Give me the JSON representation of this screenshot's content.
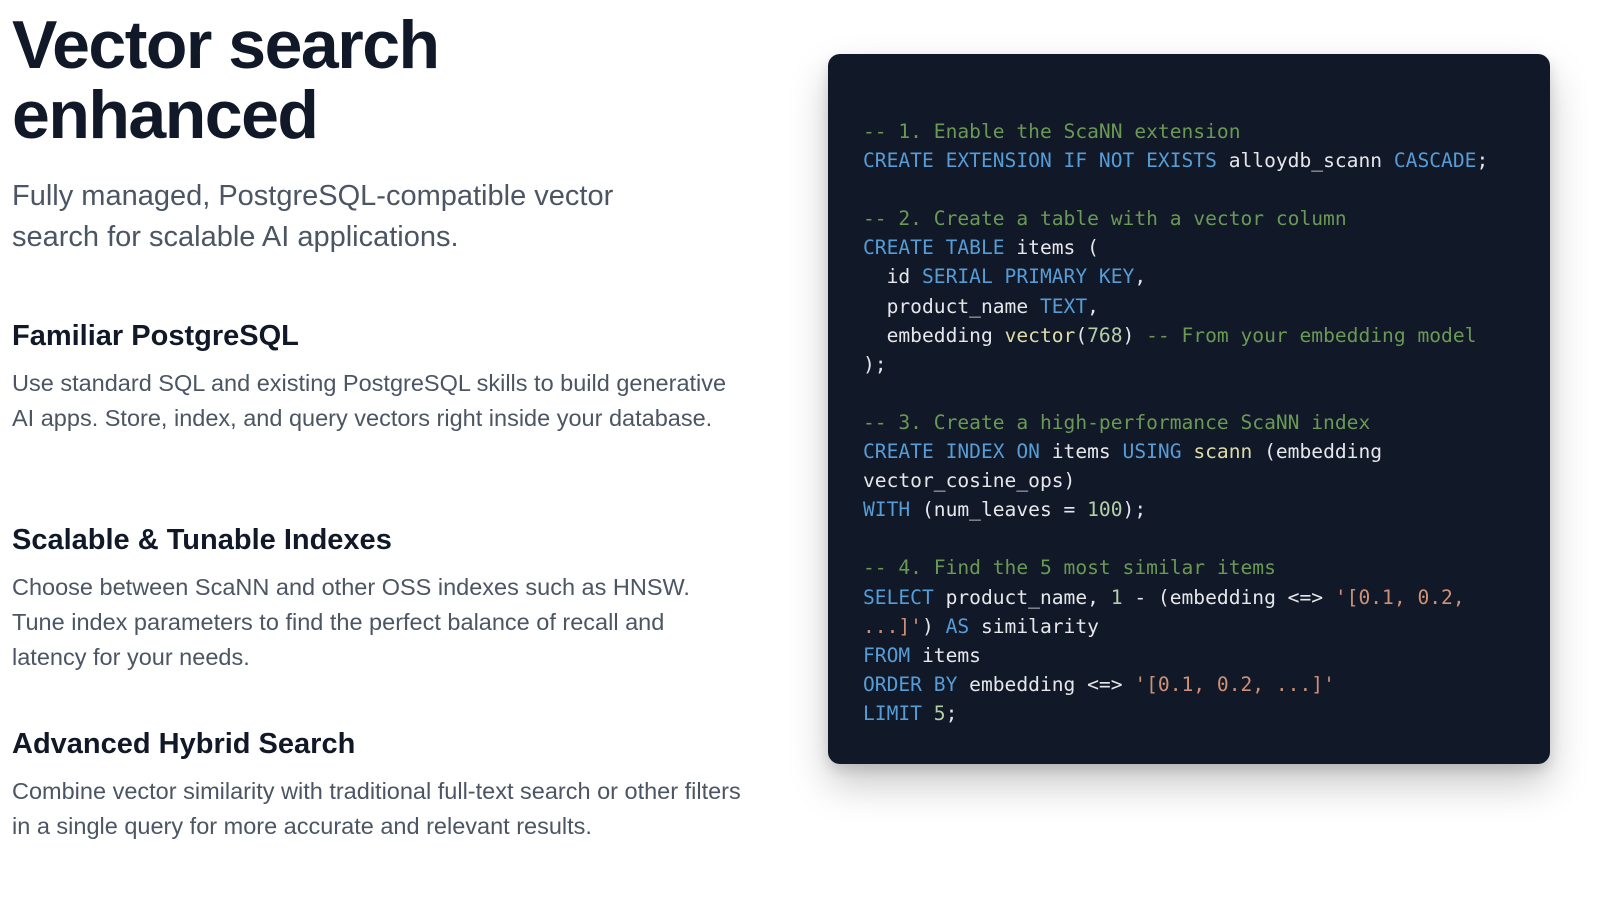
{
  "hero": {
    "title_line1": "Vector search",
    "title_line2": "enhanced",
    "subtitle": "Fully managed, PostgreSQL-compatible vector search for scalable AI applications."
  },
  "features": [
    {
      "title": "Familiar PostgreSQL",
      "description": "Use standard SQL and existing PostgreSQL skills to build generative AI apps. Store, index, and query vectors right inside your database."
    },
    {
      "title": "Scalable & Tunable Indexes",
      "description": "Choose between ScaNN and other OSS indexes such as HNSW. Tune index parameters to find the perfect balance of recall and latency for your needs."
    },
    {
      "title": "Advanced Hybrid Search",
      "description": "Combine vector similarity with traditional full-text search or other filters in a single query for more accurate and relevant results."
    }
  ],
  "colors": {
    "code_background": "#111827",
    "comment": "#6a9955",
    "keyword": "#569cd6",
    "function": "#dcdcaa",
    "number": "#b5cea8",
    "string": "#ce9178",
    "text": "#e5e7eb"
  },
  "code_lines": [
    [
      [
        "comment",
        "-- 1. Enable the ScaNN extension"
      ]
    ],
    [
      [
        "keyword",
        "CREATE EXTENSION IF NOT EXISTS"
      ],
      [
        "plain",
        " alloydb_scann "
      ],
      [
        "keyword",
        "CASCADE"
      ],
      [
        "plain",
        ";"
      ]
    ],
    [],
    [
      [
        "comment",
        "-- 2. Create a table with a vector column"
      ]
    ],
    [
      [
        "keyword",
        "CREATE TABLE"
      ],
      [
        "plain",
        " items ("
      ]
    ],
    [
      [
        "plain",
        "  id "
      ],
      [
        "keyword",
        "SERIAL PRIMARY KEY"
      ],
      [
        "plain",
        ","
      ]
    ],
    [
      [
        "plain",
        "  product_name "
      ],
      [
        "keyword",
        "TEXT"
      ],
      [
        "plain",
        ","
      ]
    ],
    [
      [
        "plain",
        "  embedding "
      ],
      [
        "func",
        "vector"
      ],
      [
        "plain",
        "("
      ],
      [
        "number",
        "768"
      ],
      [
        "plain",
        ") "
      ],
      [
        "comment",
        "-- From your embedding model"
      ]
    ],
    [
      [
        "plain",
        ");"
      ]
    ],
    [],
    [
      [
        "comment",
        "-- 3. Create a high-performance ScaNN index"
      ]
    ],
    [
      [
        "keyword",
        "CREATE INDEX ON"
      ],
      [
        "plain",
        " items "
      ],
      [
        "keyword",
        "USING"
      ],
      [
        "plain",
        " "
      ],
      [
        "func",
        "scann"
      ],
      [
        "plain",
        " (embedding"
      ]
    ],
    [
      [
        "plain",
        "vector_cosine_ops)"
      ]
    ],
    [
      [
        "keyword",
        "WITH"
      ],
      [
        "plain",
        " (num_leaves = "
      ],
      [
        "number",
        "100"
      ],
      [
        "plain",
        ");"
      ]
    ],
    [],
    [
      [
        "comment",
        "-- 4. Find the 5 most similar items"
      ]
    ],
    [
      [
        "keyword",
        "SELECT"
      ],
      [
        "plain",
        " product_name, "
      ],
      [
        "number",
        "1"
      ],
      [
        "plain",
        " - (embedding <=> "
      ],
      [
        "string",
        "'[0.1, 0.2,"
      ]
    ],
    [
      [
        "string",
        "...]'"
      ],
      [
        "plain",
        ") "
      ],
      [
        "keyword",
        "AS"
      ],
      [
        "plain",
        " similarity"
      ]
    ],
    [
      [
        "keyword",
        "FROM"
      ],
      [
        "plain",
        " items"
      ]
    ],
    [
      [
        "keyword",
        "ORDER BY"
      ],
      [
        "plain",
        " embedding <=> "
      ],
      [
        "string",
        "'[0.1, 0.2, ...]'"
      ]
    ],
    [
      [
        "keyword",
        "LIMIT"
      ],
      [
        "plain",
        " "
      ],
      [
        "number",
        "5"
      ],
      [
        "plain",
        ";"
      ]
    ]
  ]
}
